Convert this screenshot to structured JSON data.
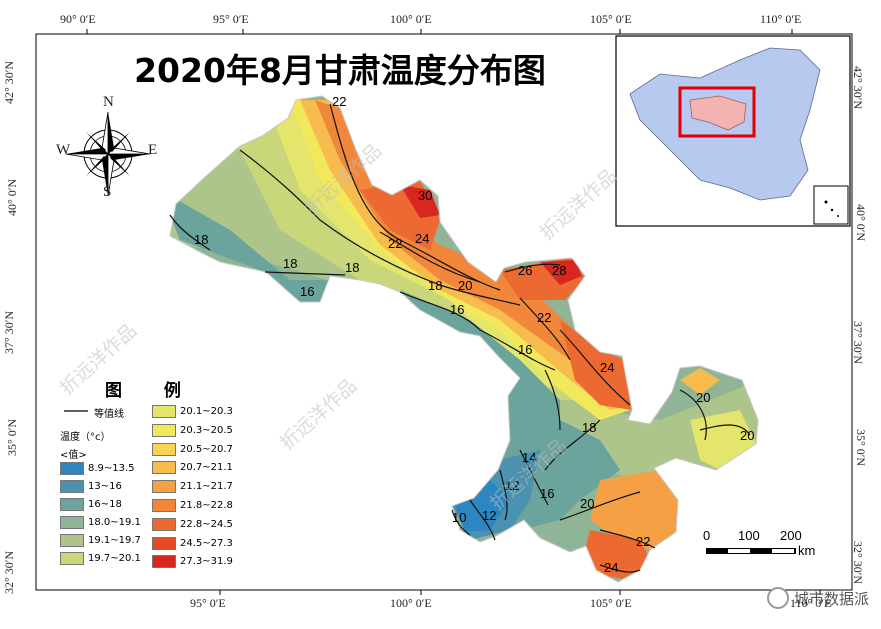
{
  "title": "2020年8月甘肃温度分布图",
  "axes": {
    "top_ticks": [
      "90° 0′E",
      "95° 0′E",
      "100° 0′E",
      "105° 0′E",
      "110° 0′E"
    ],
    "bottom_ticks": [
      "95° 0′E",
      "100° 0′E",
      "105° 0′E",
      "110° 0′E"
    ],
    "left_ticks": [
      "32° 30′N",
      "35° 0′N",
      "37° 30′N",
      "40° 0′N",
      "42° 30′N"
    ],
    "right_ticks": [
      "32° 30′N",
      "35° 0′N",
      "37° 30′N",
      "40° 0′N",
      "42° 30′N"
    ]
  },
  "compass": {
    "n": "N",
    "s": "S",
    "e": "E",
    "w": "W"
  },
  "legend": {
    "title": "图 例",
    "contour_label": "等值线",
    "unit_label": "温度（°c）",
    "value_label": "<值>",
    "classes": [
      {
        "range": "8.9~13.5",
        "color": "#2e86c1"
      },
      {
        "range": "13~16",
        "color": "#4a92b0"
      },
      {
        "range": "16~18",
        "color": "#6ba39d"
      },
      {
        "range": "18.0~19.1",
        "color": "#8fb596"
      },
      {
        "range": "19.1~19.7",
        "color": "#adc58a"
      },
      {
        "range": "19.7~20.1",
        "color": "#c9d77a"
      },
      {
        "range": "20.1~20.3",
        "color": "#e4e56c"
      },
      {
        "range": "20.3~20.5",
        "color": "#f2e85c"
      },
      {
        "range": "20.5~20.7",
        "color": "#f7d455"
      },
      {
        "range": "20.7~21.1",
        "color": "#f8bb4e"
      },
      {
        "range": "21.1~21.7",
        "color": "#f5a044"
      },
      {
        "range": "21.8~22.8",
        "color": "#f1873b"
      },
      {
        "range": "22.8~24.5",
        "color": "#ec6a31"
      },
      {
        "range": "24.5~27.3",
        "color": "#e54a27"
      },
      {
        "range": "27.3~31.9",
        "color": "#d9261f"
      }
    ]
  },
  "contour_labels": [
    "22",
    "30",
    "24",
    "22",
    "18",
    "18",
    "18",
    "16",
    "20",
    "18",
    "26",
    "28",
    "22",
    "16",
    "16",
    "24",
    "20",
    "20",
    "18",
    "14",
    "12",
    "16",
    "20",
    "10",
    "12",
    "22",
    "24"
  ],
  "scale_bar": {
    "ticks": [
      "0",
      "100",
      "200"
    ],
    "unit": "km"
  },
  "watermark": "折远洋作品",
  "brand": "城市数据派",
  "inset": {
    "colors": {
      "china": "#b7c9ef",
      "gansu": "#f4b3b3",
      "frame": "#e00000"
    }
  }
}
